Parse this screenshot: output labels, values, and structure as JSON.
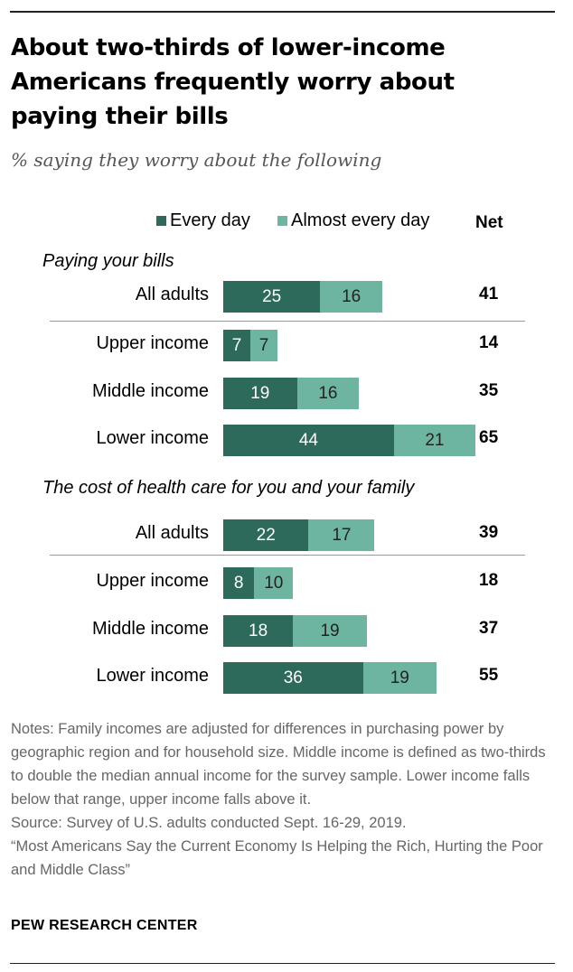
{
  "title": "About two-thirds of lower-income Americans frequently worry about paying their bills",
  "subtitle": "% saying they worry about the following",
  "legend": {
    "every_day": "Every day",
    "almost_every_day": "Almost every day"
  },
  "net_header": "Net",
  "colors": {
    "every_day": "#2d6a5c",
    "almost_every_day": "#6db5a0"
  },
  "chart_data": {
    "type": "bar",
    "orientation": "horizontal",
    "stacked": true,
    "title": "About two-thirds of lower-income Americans frequently worry about paying their bills",
    "subtitle": "% saying they worry about the following",
    "series_names": [
      "Every day",
      "Almost every day"
    ],
    "value_max": 65,
    "groups": [
      {
        "label": "Paying your bills",
        "rows": [
          {
            "label": "All adults",
            "every_day": 25,
            "almost_every_day": 16,
            "net": 41
          },
          {
            "label": "Upper income",
            "every_day": 7,
            "almost_every_day": 7,
            "net": 14
          },
          {
            "label": "Middle income",
            "every_day": 19,
            "almost_every_day": 16,
            "net": 35
          },
          {
            "label": "Lower income",
            "every_day": 44,
            "almost_every_day": 21,
            "net": 65
          }
        ]
      },
      {
        "label": "The cost of health care for you and your family",
        "rows": [
          {
            "label": "All adults",
            "every_day": 22,
            "almost_every_day": 17,
            "net": 39
          },
          {
            "label": "Upper income",
            "every_day": 8,
            "almost_every_day": 10,
            "net": 18
          },
          {
            "label": "Middle income",
            "every_day": 18,
            "almost_every_day": 19,
            "net": 37
          },
          {
            "label": "Lower income",
            "every_day": 36,
            "almost_every_day": 19,
            "net": 55
          }
        ]
      }
    ]
  },
  "notes": {
    "note": "Notes:  Family incomes are adjusted for differences in purchasing power by geographic region and for household size. Middle income is defined as two-thirds to double the median annual income for the survey sample. Lower income falls below that range, upper income falls above it.",
    "source": "Source: Survey of U.S. adults conducted Sept. 16-29, 2019.",
    "report": "“Most Americans Say the Current Economy Is Helping the Rich, Hurting the Poor and Middle Class”"
  },
  "brand": "PEW RESEARCH CENTER"
}
